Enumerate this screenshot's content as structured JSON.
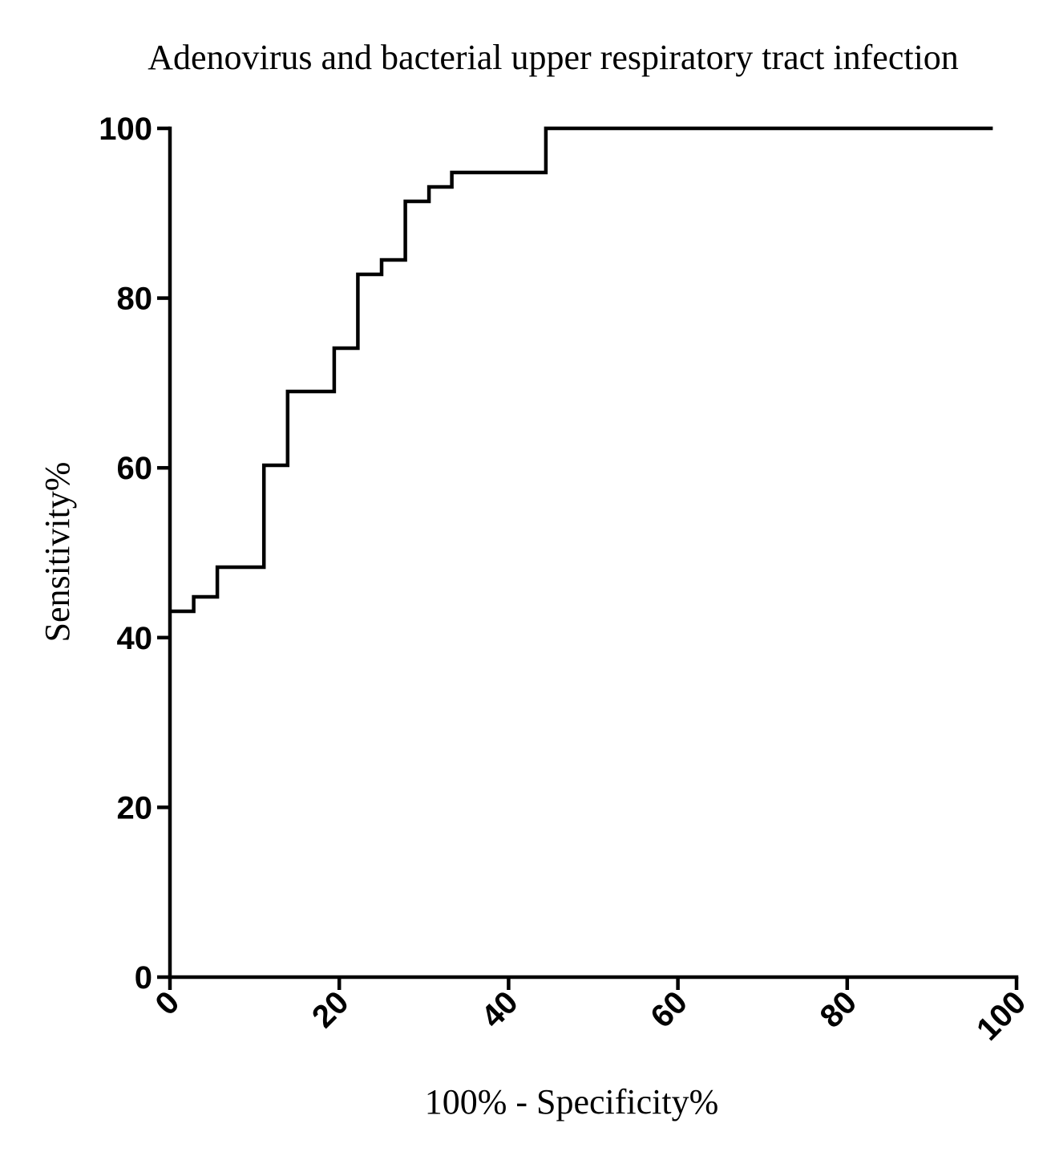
{
  "chart_data": {
    "type": "line",
    "title": "Adenovirus and bacterial upper respiratory tract infection",
    "xlabel": "100% - Specificity%",
    "ylabel": "Sensitivity%",
    "xlim": [
      0,
      100
    ],
    "ylim": [
      0,
      100
    ],
    "x_ticks": [
      0,
      20,
      40,
      60,
      80,
      100
    ],
    "y_ticks": [
      0,
      20,
      40,
      60,
      80,
      100
    ],
    "x_tick_labels": [
      "0",
      "20",
      "40",
      "60",
      "80",
      "100"
    ],
    "y_tick_labels": [
      "0",
      "20",
      "40",
      "60",
      "80",
      "100"
    ],
    "grid": false,
    "series": [
      {
        "line_style": "step",
        "color": "#000000",
        "x": [
          0,
          2.8,
          2.8,
          5.6,
          5.6,
          11.1,
          11.1,
          13.9,
          13.9,
          19.4,
          19.4,
          22.2,
          22.2,
          25.0,
          25.0,
          27.8,
          27.8,
          30.6,
          30.6,
          33.3,
          33.3,
          44.4,
          44.4,
          97.2
        ],
        "y": [
          43.1,
          43.1,
          44.8,
          44.8,
          48.3,
          48.3,
          60.3,
          60.3,
          69.0,
          69.0,
          74.1,
          74.1,
          82.8,
          82.8,
          84.5,
          84.5,
          91.4,
          91.4,
          93.1,
          93.1,
          94.8,
          94.8,
          100,
          100
        ]
      }
    ]
  }
}
